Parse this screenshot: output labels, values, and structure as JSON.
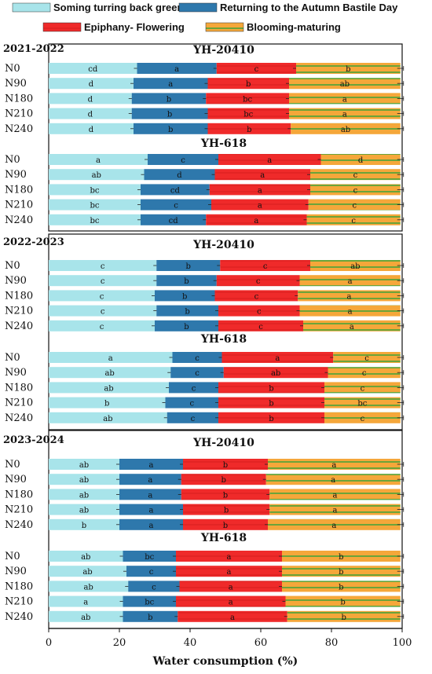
{
  "chart_data": {
    "type": "bar",
    "orientation": "horizontal-stacked-percent",
    "xlabel": "Water consumption (%)",
    "xlim": [
      0,
      100
    ],
    "xticks": [
      "0",
      "20",
      "40",
      "60",
      "80",
      "100"
    ],
    "legend": [
      {
        "name": "Soming turring back green",
        "color": "#a8e4ea"
      },
      {
        "name": "Returning to the Autumn Bastile Day",
        "color": "#2e78ac"
      },
      {
        "name": "Epiphany- Flowering",
        "color": "#ef2a2a"
      },
      {
        "name": "Blooming-maturing",
        "color": "#f5a73a"
      }
    ],
    "panels": [
      {
        "period": "2021-2022",
        "groups": [
          {
            "variety": "YH-20410",
            "rows": [
              {
                "name": "N0",
                "values": [
                  25,
                  22.5,
                  22.5,
                  29.5
                ],
                "labels": [
                  "cd",
                  "a",
                  "c",
                  "b"
                ]
              },
              {
                "name": "N90",
                "values": [
                  24,
                  21,
                  23,
                  31.5
                ],
                "labels": [
                  "d",
                  "a",
                  "b",
                  "ab"
                ]
              },
              {
                "name": "N180",
                "values": [
                  23.5,
                  21,
                  23.5,
                  31.5
                ],
                "labels": [
                  "d",
                  "b",
                  "bc",
                  "a"
                ]
              },
              {
                "name": "N210",
                "values": [
                  23.5,
                  21.5,
                  23,
                  31.5
                ],
                "labels": [
                  "d",
                  "b",
                  "bc",
                  "a"
                ]
              },
              {
                "name": "N240",
                "values": [
                  24,
                  21,
                  23.5,
                  31
                ],
                "labels": [
                  "d",
                  "b",
                  "b",
                  "ab"
                ]
              }
            ]
          },
          {
            "variety": "YH-618",
            "rows": [
              {
                "name": "N0",
                "values": [
                  28,
                  20,
                  29,
                  22.5
                ],
                "labels": [
                  "a",
                  "c",
                  "a",
                  "d"
                ]
              },
              {
                "name": "N90",
                "values": [
                  27,
                  20,
                  27,
                  25.5
                ],
                "labels": [
                  "ab",
                  "d",
                  "a",
                  "c"
                ]
              },
              {
                "name": "N180",
                "values": [
                  26,
                  19.5,
                  28.5,
                  25.5
                ],
                "labels": [
                  "bc",
                  "cd",
                  "a",
                  "c"
                ]
              },
              {
                "name": "N210",
                "values": [
                  26,
                  20,
                  27.5,
                  26
                ],
                "labels": [
                  "bc",
                  "c",
                  "a",
                  "c"
                ]
              },
              {
                "name": "N240",
                "values": [
                  26,
                  18.5,
                  28.5,
                  26.5
                ],
                "labels": [
                  "bc",
                  "cd",
                  "a",
                  "c"
                ]
              }
            ]
          }
        ]
      },
      {
        "period": "2022-2023",
        "groups": [
          {
            "variety": "YH-20410",
            "rows": [
              {
                "name": "N0",
                "values": [
                  30.5,
                  18,
                  25.5,
                  25.5
                ],
                "labels": [
                  "c",
                  "b",
                  "c",
                  "ab"
                ]
              },
              {
                "name": "N90",
                "values": [
                  30.5,
                  17,
                  23.5,
                  28.5
                ],
                "labels": [
                  "c",
                  "b",
                  "c",
                  "a"
                ]
              },
              {
                "name": "N180",
                "values": [
                  30,
                  17,
                  23.5,
                  29
                ],
                "labels": [
                  "c",
                  "b",
                  "c",
                  "a"
                ]
              },
              {
                "name": "N210",
                "values": [
                  30.5,
                  17.5,
                  23,
                  28.5
                ],
                "labels": [
                  "c",
                  "b",
                  "c",
                  "a"
                ]
              },
              {
                "name": "N240",
                "values": [
                  30,
                  18,
                  24,
                  27.5
                ],
                "labels": [
                  "c",
                  "b",
                  "c",
                  "a"
                ]
              }
            ]
          },
          {
            "variety": "YH-618",
            "rows": [
              {
                "name": "N0",
                "values": [
                  35,
                  14,
                  31.5,
                  19
                ],
                "labels": [
                  "a",
                  "c",
                  "a",
                  "c"
                ]
              },
              {
                "name": "N90",
                "values": [
                  34.5,
                  15,
                  29.5,
                  20.5
                ],
                "labels": [
                  "ab",
                  "c",
                  "ab",
                  "c"
                ]
              },
              {
                "name": "N180",
                "values": [
                  34,
                  14,
                  30,
                  21.5
                ],
                "labels": [
                  "ab",
                  "c",
                  "b",
                  "c"
                ]
              },
              {
                "name": "N210",
                "values": [
                  33,
                  15,
                  30,
                  21.5
                ],
                "labels": [
                  "b",
                  "c",
                  "b",
                  "bc"
                ]
              },
              {
                "name": "N240",
                "values": [
                  33.5,
                  14.5,
                  30,
                  21.5
                ],
                "labels": [
                  "ab",
                  "c",
                  "b",
                  "c"
                ]
              }
            ]
          }
        ]
      },
      {
        "period": "2023-2024",
        "groups": [
          {
            "variety": "YH-20410",
            "rows": [
              {
                "name": "N0",
                "values": [
                  20,
                  18,
                  24,
                  37.5
                ],
                "labels": [
                  "ab",
                  "a",
                  "b",
                  "a"
                ]
              },
              {
                "name": "N90",
                "values": [
                  20,
                  17.5,
                  24,
                  38
                ],
                "labels": [
                  "ab",
                  "a",
                  "b",
                  "a"
                ]
              },
              {
                "name": "N180",
                "values": [
                  20,
                  17.5,
                  25,
                  37
                ],
                "labels": [
                  "ab",
                  "a",
                  "b",
                  "a"
                ]
              },
              {
                "name": "N210",
                "values": [
                  20,
                  18,
                  24.5,
                  37
                ],
                "labels": [
                  "ab",
                  "a",
                  "b",
                  "a"
                ]
              },
              {
                "name": "N240",
                "values": [
                  20,
                  18,
                  24,
                  37.5
                ],
                "labels": [
                  "b",
                  "a",
                  "b",
                  "a"
                ]
              }
            ]
          },
          {
            "variety": "YH-618",
            "rows": [
              {
                "name": "N0",
                "values": [
                  21,
                  15,
                  30,
                  33.5
                ],
                "labels": [
                  "ab",
                  "bc",
                  "a",
                  "b"
                ]
              },
              {
                "name": "N90",
                "values": [
                  22,
                  14,
                  30,
                  33.5
                ],
                "labels": [
                  "ab",
                  "c",
                  "a",
                  "b"
                ]
              },
              {
                "name": "N180",
                "values": [
                  22.5,
                  14.5,
                  29,
                  33.5
                ],
                "labels": [
                  "ab",
                  "c",
                  "a",
                  "b"
                ]
              },
              {
                "name": "N210",
                "values": [
                  21,
                  15,
                  31,
                  32.5
                ],
                "labels": [
                  "a",
                  "bc",
                  "a",
                  "b"
                ]
              },
              {
                "name": "N240",
                "values": [
                  21,
                  15.5,
                  31,
                  32
                ],
                "labels": [
                  "ab",
                  "b",
                  "a",
                  "b"
                ]
              }
            ]
          }
        ]
      }
    ]
  }
}
